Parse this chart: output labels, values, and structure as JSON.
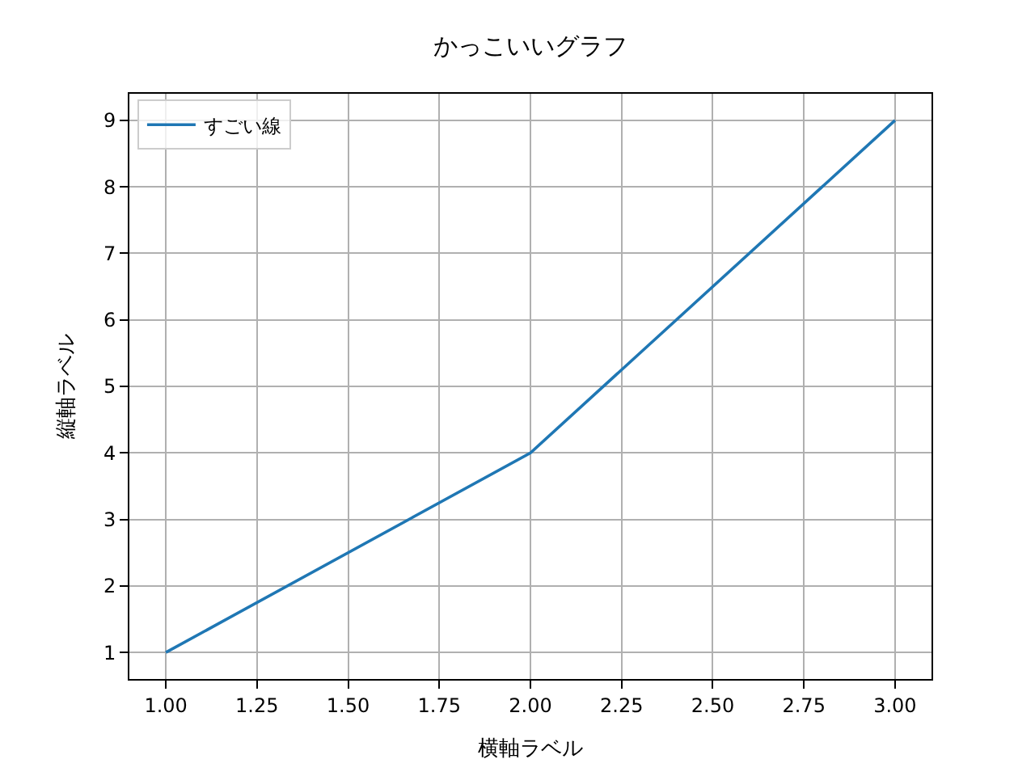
{
  "chart_data": {
    "type": "line",
    "title": "かっこいいグラフ",
    "xlabel": "横軸ラベル",
    "ylabel": "縦軸ラベル",
    "x": [
      1,
      2,
      3
    ],
    "series": [
      {
        "name": "すごい線",
        "color": "#1f77b4",
        "values": [
          1,
          4,
          9
        ]
      }
    ],
    "xlim": [
      0.9,
      3.1
    ],
    "ylim": [
      0.6,
      9.4
    ],
    "xticks": [
      {
        "value": 1,
        "label": "1.00"
      },
      {
        "value": 1.25,
        "label": "1.25"
      },
      {
        "value": 1.5,
        "label": "1.50"
      },
      {
        "value": 1.75,
        "label": "1.75"
      },
      {
        "value": 2,
        "label": "2.00"
      },
      {
        "value": 2.25,
        "label": "2.25"
      },
      {
        "value": 2.5,
        "label": "2.50"
      },
      {
        "value": 2.75,
        "label": "2.75"
      },
      {
        "value": 3,
        "label": "3.00"
      }
    ],
    "yticks": [
      1,
      2,
      3,
      4,
      5,
      6,
      7,
      8,
      9
    ],
    "grid": true,
    "legend": "top left",
    "marker": "none",
    "line_style": "solid"
  }
}
